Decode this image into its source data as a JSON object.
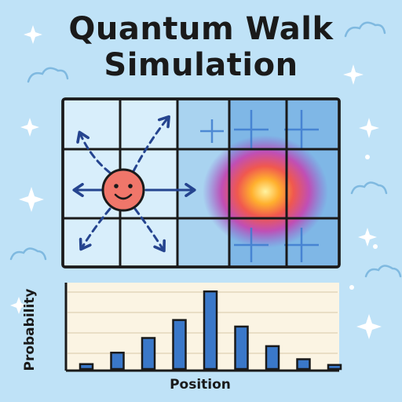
{
  "title": {
    "line1": "Quantum Walk",
    "line2": "Simulation"
  },
  "colors": {
    "background": "#bfe2f7",
    "grid_fill": "#d8eefb",
    "grid_line": "#1a1a1a",
    "particle": "#f0766a",
    "arrow": "#25448f",
    "bar": "#3a78c9",
    "chart_bg": "#fbf4e3"
  },
  "decorations": [
    "sparkle-icon",
    "cloud-icon"
  ],
  "chart_data": {
    "type": "bar",
    "xlabel": "Position",
    "ylabel": "Probability",
    "categories": [
      "",
      "",
      "",
      "",
      "",
      "",
      "",
      "",
      ""
    ],
    "values": [
      0.06,
      0.2,
      0.38,
      0.6,
      0.95,
      0.52,
      0.28,
      0.12,
      0.05
    ],
    "ylim": [
      0,
      1
    ],
    "grid": true
  }
}
